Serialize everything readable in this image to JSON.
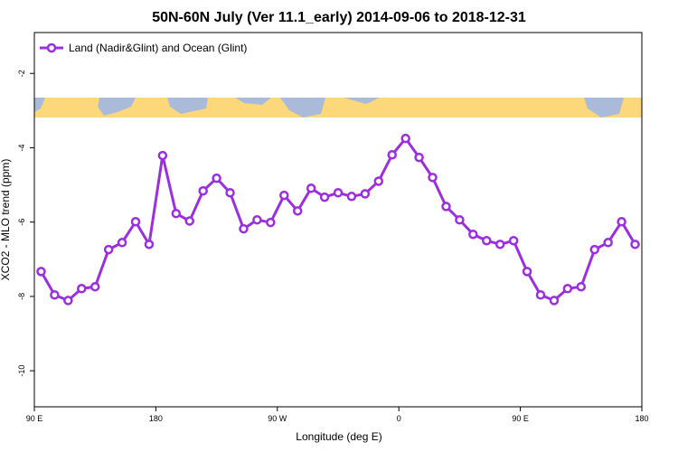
{
  "chart_data": {
    "type": "line",
    "title": "50N-60N July (Ver 11.1_early)   2014-09-06 to 2018-12-31",
    "x_label": "Longitude (deg E)",
    "y_label": "XCO2 - MLO trend (ppm)",
    "x": [
      95,
      105,
      115,
      125,
      135,
      145,
      155,
      165,
      175,
      185,
      195,
      205,
      215,
      225,
      235,
      245,
      255,
      265,
      275,
      285,
      295,
      305,
      315,
      325,
      335,
      345,
      355,
      365,
      375,
      385,
      395,
      405,
      415,
      425,
      435,
      445,
      455,
      465,
      475,
      485,
      495,
      505,
      515,
      525,
      535
    ],
    "series": [
      {
        "name": "Land (Nadir&Glint) and Ocean (Glint)",
        "color": "#9b2fe0",
        "values": [
          -7.33,
          -7.96,
          -8.11,
          -7.79,
          -7.74,
          -6.74,
          -6.55,
          -5.99,
          -6.6,
          -4.21,
          -5.77,
          -5.97,
          -5.16,
          -4.82,
          -5.21,
          -6.18,
          -5.94,
          -6.01,
          -5.28,
          -5.7,
          -5.09,
          -5.33,
          -5.21,
          -5.31,
          -5.24,
          -4.9,
          -4.19,
          -3.75,
          -4.26,
          -4.8,
          -5.58,
          -5.94,
          -6.33,
          -6.5,
          -6.6,
          -6.5,
          -7.33,
          -7.96,
          -8.11,
          -7.79,
          -7.74,
          -6.74,
          -6.55,
          -5.99,
          -6.6
        ]
      }
    ],
    "xlim": [
      90,
      540
    ],
    "xticks": [
      {
        "value": 90,
        "label": "90 E"
      },
      180,
      {
        "value": 270,
        "label": "90 W"
      },
      {
        "value": 360,
        "label": "0"
      },
      {
        "value": 450,
        "label": "90 E"
      },
      {
        "value": 540,
        "label": "180"
      }
    ],
    "ylim": [
      -10.97,
      -0.9
    ],
    "yticks": [
      -2,
      -4,
      -6,
      -8,
      -10
    ],
    "legend": "top-left"
  }
}
